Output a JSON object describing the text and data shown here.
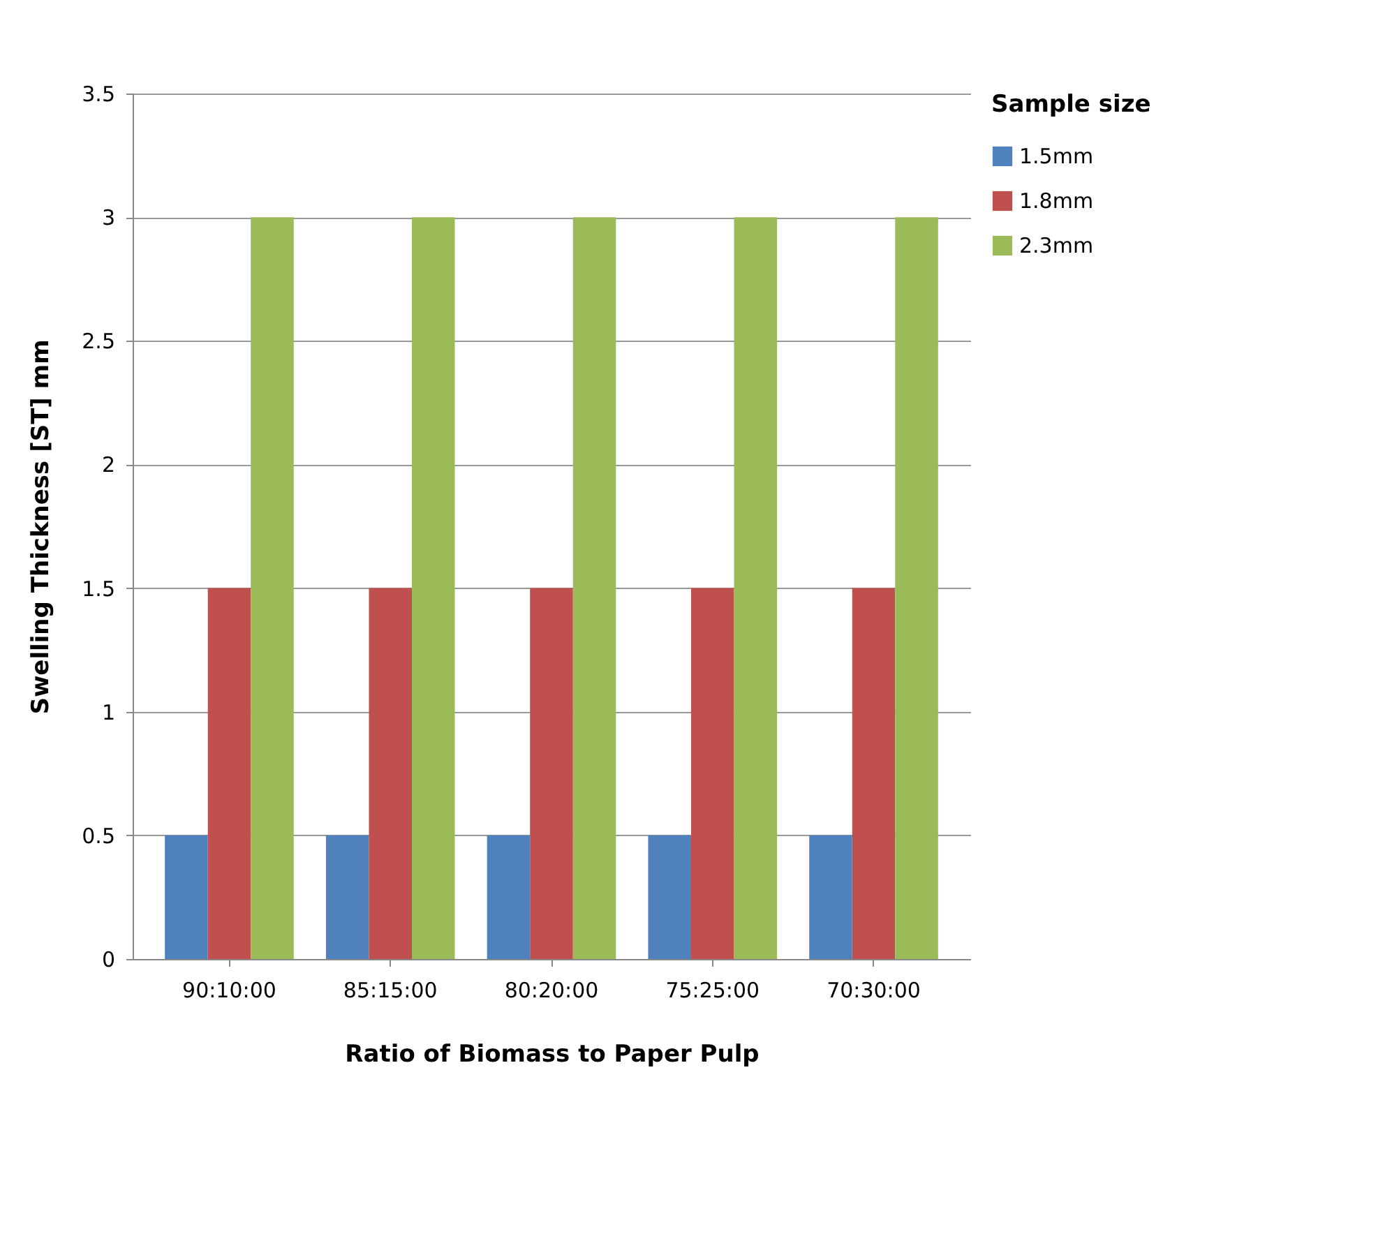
{
  "chart_data": {
    "type": "bar",
    "xlabel": "Ratio of Biomass to Paper Pulp",
    "ylabel": "Swelling Thickness [ST] mm",
    "legend_title": "Sample size",
    "categories": [
      "90:10:00",
      "85:15:00",
      "80:20:00",
      "75:25:00",
      "70:30:00"
    ],
    "series": [
      {
        "name": "1.5mm",
        "color": "#4f81bd",
        "values": [
          0.5,
          0.5,
          0.5,
          0.5,
          0.5
        ]
      },
      {
        "name": "1.8mm",
        "color": "#c0504d",
        "values": [
          1.5,
          1.5,
          1.5,
          1.5,
          1.5
        ]
      },
      {
        "name": "2.3mm",
        "color": "#9bbb59",
        "values": [
          3,
          3,
          3,
          3,
          3
        ]
      }
    ],
    "ylim": [
      0,
      3.5
    ],
    "yticks": [
      0,
      0.5,
      1,
      1.5,
      2,
      2.5,
      3,
      3.5
    ],
    "grid": "y",
    "legend": "right"
  }
}
